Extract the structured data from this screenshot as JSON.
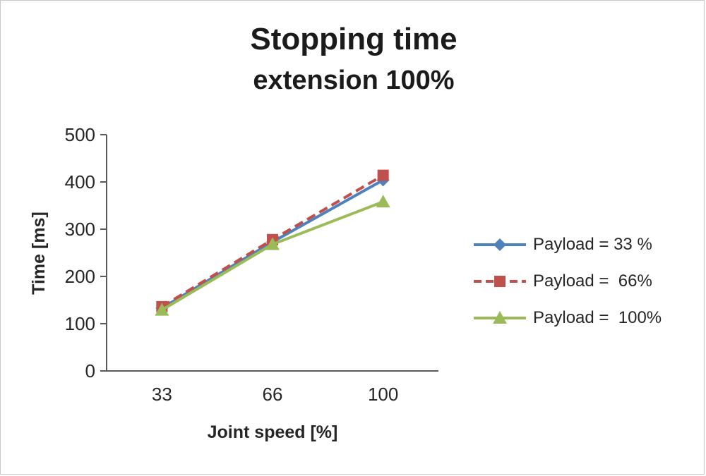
{
  "title": "Stopping time",
  "subtitle": "extension 100%",
  "chart_data": {
    "type": "line",
    "title": "Stopping time",
    "subtitle": "extension 100%",
    "categories": [
      "33",
      "66",
      "100"
    ],
    "x": [
      33,
      66,
      100
    ],
    "series": [
      {
        "name": "Payload = 33 %",
        "values": [
          133,
          273,
          404
        ],
        "color": "#4f81bd",
        "marker": "diamond",
        "dash": "solid"
      },
      {
        "name": "Payload =  66%",
        "values": [
          136,
          278,
          414
        ],
        "color": "#c0504d",
        "marker": "square",
        "dash": "dashed"
      },
      {
        "name": "Payload =  100%",
        "values": [
          129,
          268,
          358
        ],
        "color": "#9bbb59",
        "marker": "triangle",
        "dash": "solid"
      }
    ],
    "xlabel": "Joint speed [%]",
    "ylabel": "Time [ms]",
    "ylim": [
      0,
      500
    ],
    "ytick_step": 100,
    "grid": false,
    "legend_position": "right",
    "axis_color": "#595959",
    "text_color": "#262626"
  }
}
